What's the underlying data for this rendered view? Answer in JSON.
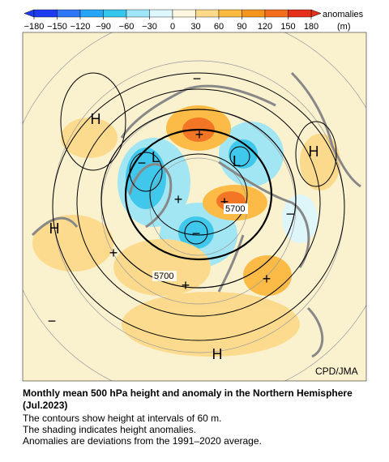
{
  "colorbar": {
    "ticks": [
      {
        "value": -180,
        "label": "−180"
      },
      {
        "value": -150,
        "label": "−150"
      },
      {
        "value": -120,
        "label": "−120"
      },
      {
        "value": -90,
        "label": "−90"
      },
      {
        "value": -60,
        "label": "−60"
      },
      {
        "value": -30,
        "label": "−30"
      },
      0,
      30,
      60,
      90,
      120,
      150,
      180
    ],
    "colors": [
      "#1f3df0",
      "#2f77f5",
      "#26a4f5",
      "#35c6ee",
      "#9ee6f7",
      "#ddf7fc",
      "#fdf7e2",
      "#fdd98a",
      "#fdb940",
      "#f6951d",
      "#f2701d",
      "#e4301b"
    ],
    "title": "anomalies",
    "unit": "(m)"
  },
  "map": {
    "labels": [
      "H",
      "L",
      "L",
      "H",
      "H",
      "H",
      "+",
      "+",
      "+",
      "+",
      "+",
      "+",
      "−",
      "−",
      "−",
      "−",
      "−"
    ],
    "contour_labels": [
      "5700",
      "5700"
    ],
    "credit": "CPD/JMA"
  },
  "caption": {
    "title": "Monthly mean 500 hPa height and anomaly in the Northern Hemisphere (Jul.2023)",
    "lines": [
      "The contours show height at intervals of 60 m.",
      "The shading indicates height anomalies.",
      "Anomalies are deviations from the 1991–2020 average."
    ]
  }
}
